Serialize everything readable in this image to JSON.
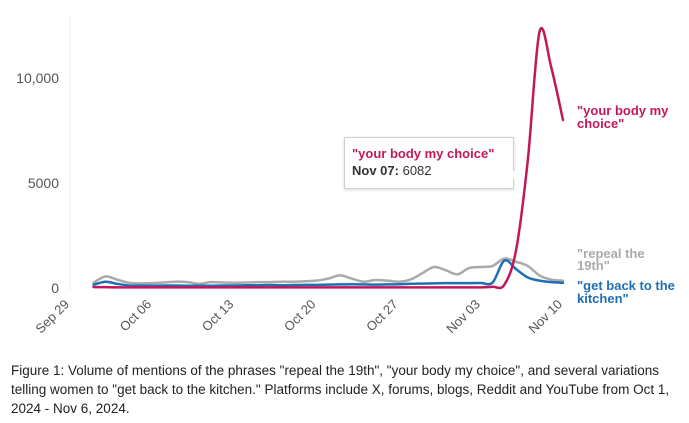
{
  "chart_data": {
    "type": "line",
    "ylim": [
      0,
      13000
    ],
    "y_ticks": [
      {
        "value": 0,
        "label": "0"
      },
      {
        "value": 5000,
        "label": "5000"
      },
      {
        "value": 10000,
        "label": "10,000"
      }
    ],
    "x_ticks": [
      {
        "date": "2024-09-29",
        "label": "Sep 29"
      },
      {
        "date": "2024-10-06",
        "label": "Oct 06"
      },
      {
        "date": "2024-10-13",
        "label": "Oct 13"
      },
      {
        "date": "2024-10-20",
        "label": "Oct 20"
      },
      {
        "date": "2024-10-27",
        "label": "Oct 27"
      },
      {
        "date": "2024-11-03",
        "label": "Nov 03"
      },
      {
        "date": "2024-11-10",
        "label": "Nov 10"
      }
    ],
    "x_dates": [
      "2024-10-01",
      "2024-10-02",
      "2024-10-03",
      "2024-10-04",
      "2024-10-05",
      "2024-10-06",
      "2024-10-07",
      "2024-10-08",
      "2024-10-09",
      "2024-10-10",
      "2024-10-11",
      "2024-10-12",
      "2024-10-13",
      "2024-10-14",
      "2024-10-15",
      "2024-10-16",
      "2024-10-17",
      "2024-10-18",
      "2024-10-19",
      "2024-10-20",
      "2024-10-21",
      "2024-10-22",
      "2024-10-23",
      "2024-10-24",
      "2024-10-25",
      "2024-10-26",
      "2024-10-27",
      "2024-10-28",
      "2024-10-29",
      "2024-10-30",
      "2024-10-31",
      "2024-11-01",
      "2024-11-02",
      "2024-11-03",
      "2024-11-04",
      "2024-11-05",
      "2024-11-06",
      "2024-11-07",
      "2024-11-08",
      "2024-11-09",
      "2024-11-10"
    ],
    "series": [
      {
        "name": "\"repeal the 19th\"",
        "label_lines": [
          "\"repeal the",
          "19th\""
        ],
        "color": "#aaaaaa",
        "values": [
          250,
          550,
          400,
          250,
          220,
          230,
          260,
          300,
          280,
          200,
          280,
          260,
          250,
          260,
          280,
          280,
          300,
          300,
          320,
          350,
          450,
          600,
          450,
          300,
          380,
          350,
          300,
          400,
          700,
          1000,
          850,
          650,
          950,
          1000,
          1050,
          1400,
          1250,
          1050,
          600,
          400,
          350
        ]
      },
      {
        "name": "\"your body my choice\"",
        "label_lines": [
          "\"your body my",
          "choice\""
        ],
        "color": "#c2185b",
        "values": [
          40,
          40,
          30,
          30,
          30,
          30,
          30,
          30,
          30,
          30,
          30,
          30,
          30,
          30,
          30,
          30,
          30,
          30,
          30,
          30,
          30,
          30,
          30,
          30,
          30,
          30,
          30,
          30,
          30,
          30,
          30,
          30,
          30,
          30,
          60,
          150,
          1800,
          6082,
          12200,
          10500,
          8000
        ]
      },
      {
        "name": "\"get back to the kitchen\"",
        "label_lines": [
          "\"get back to the",
          "kitchen\""
        ],
        "color": "#1f6fb5",
        "values": [
          150,
          300,
          200,
          120,
          110,
          110,
          120,
          120,
          110,
          110,
          110,
          120,
          120,
          130,
          130,
          140,
          130,
          140,
          150,
          150,
          160,
          170,
          180,
          170,
          160,
          170,
          180,
          200,
          210,
          220,
          230,
          230,
          230,
          240,
          260,
          1300,
          900,
          500,
          350,
          280,
          250
        ]
      }
    ],
    "tooltip": {
      "series": "\"your body my choice\"",
      "date_label": "Nov 07:",
      "value_label": "6082"
    },
    "caption": "Figure 1: Volume of mentions of the phrases \"repeal the 19th\", \"your body my choice\", and several variations telling women to \"get back to the kitchen.\" Platforms include X, forums, blogs, Reddit and YouTube from Oct 1, 2024 - Nov 6, 2024."
  }
}
